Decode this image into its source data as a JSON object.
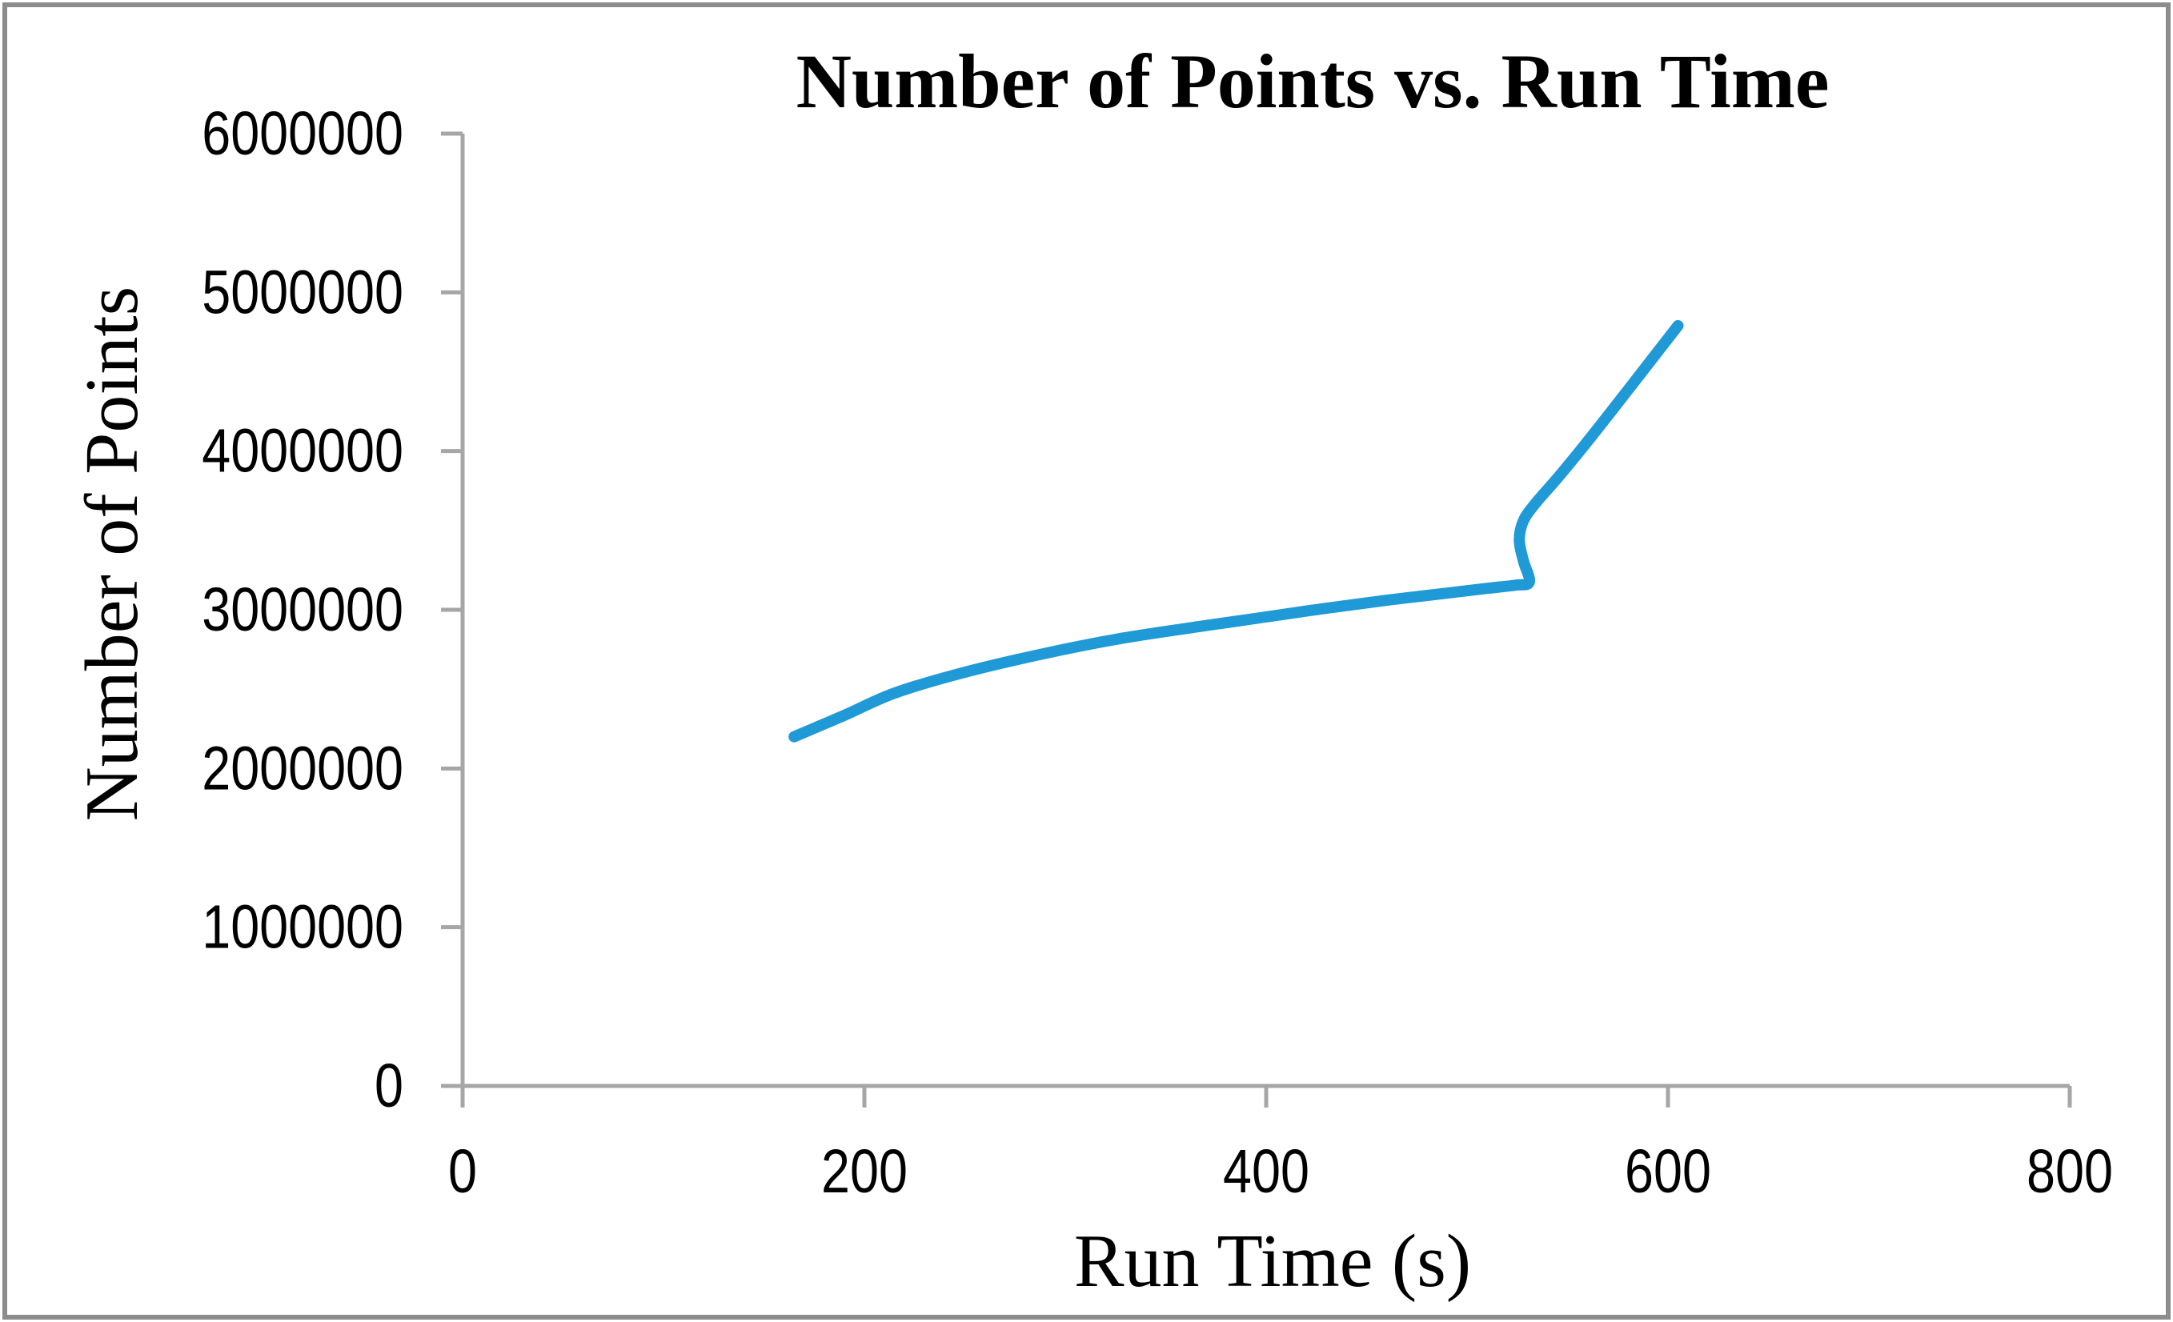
{
  "window": {
    "background": "#FFFFFF",
    "frame_border_color": "#8C8C8C"
  },
  "chart_data": {
    "type": "line",
    "title": "Number of Points vs. Run Time",
    "xlabel": "Run Time (s)",
    "ylabel": "Number of Points",
    "xlim": [
      0,
      800
    ],
    "ylim": [
      0,
      6000000
    ],
    "x_ticks": [
      0,
      200,
      400,
      600,
      800
    ],
    "y_ticks": [
      0,
      1000000,
      2000000,
      3000000,
      4000000,
      5000000,
      6000000
    ],
    "grid": false,
    "legend_position": "none",
    "axis_color": "#A6A6A6",
    "text_color": "#000000",
    "series": [
      {
        "name": "Number of Points",
        "color": "#1F9AD6",
        "stroke_width": 14,
        "smooth": true,
        "points": [
          [
            165,
            2200000
          ],
          [
            190,
            2335000
          ],
          [
            215,
            2475000
          ],
          [
            248,
            2600000
          ],
          [
            288,
            2720000
          ],
          [
            328,
            2820000
          ],
          [
            367,
            2895000
          ],
          [
            400,
            2955000
          ],
          [
            430,
            3010000
          ],
          [
            460,
            3060000
          ],
          [
            490,
            3105000
          ],
          [
            510,
            3135000
          ],
          [
            524,
            3155000
          ],
          [
            531,
            3175000
          ],
          [
            528,
            3310000
          ],
          [
            526,
            3440000
          ],
          [
            528,
            3560000
          ],
          [
            534,
            3670000
          ],
          [
            545,
            3830000
          ],
          [
            558,
            4030000
          ],
          [
            573,
            4270000
          ],
          [
            589,
            4530000
          ],
          [
            605,
            4790000
          ]
        ]
      }
    ]
  }
}
